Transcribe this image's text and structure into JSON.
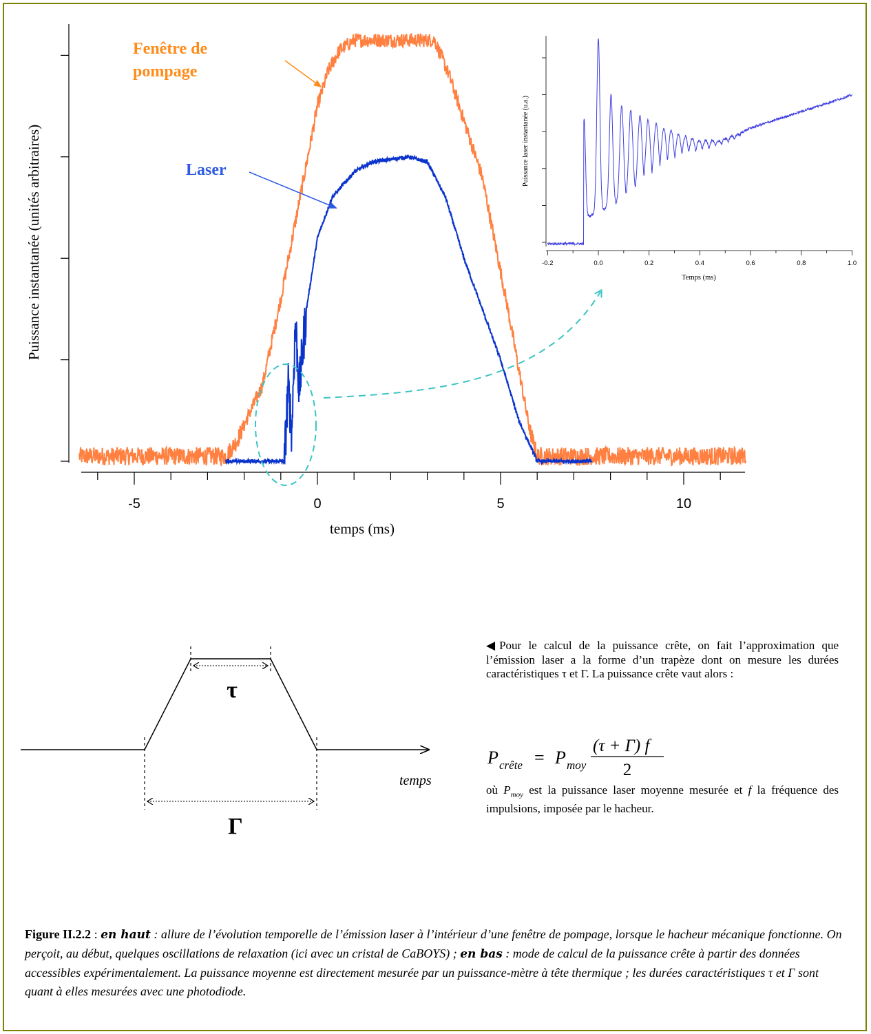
{
  "colors": {
    "border": "#808000",
    "pump": "#FF8040",
    "laser": "#0A33CC",
    "inset_laser": "#3F3FE0",
    "annotation_arrow": "#3BC4C4",
    "pump_label": "#FF8C1A",
    "laser_label": "#2E5BE0"
  },
  "main_chart": {
    "xlabel": "temps (ms)",
    "ylabel": "Puissance instantanée (unités arbitraires)",
    "x_tick_labels": [
      "-5",
      "0",
      "5",
      "10"
    ],
    "pump_label_line1": "Fenêtre de",
    "pump_label_line2": "pompage",
    "laser_label": "Laser"
  },
  "inset_chart": {
    "xlabel": "Temps (ms)",
    "ylabel": "Puissance laser instantanée (u.a.)",
    "x_tick_labels": [
      "-0.2",
      "0.0",
      "0.2",
      "0.4",
      "0.6",
      "0.8",
      "1.0"
    ]
  },
  "chart_data": [
    {
      "type": "line",
      "xlabel": "temps (ms)",
      "ylabel": "Puissance instantanée (unités arbitraires)",
      "xlim": [
        -6.5,
        11.7
      ],
      "ylim": [
        0,
        4.3
      ],
      "x_ticks": [
        -5,
        0,
        5,
        10
      ],
      "series": [
        {
          "name": "Fenêtre de pompage",
          "x": [
            -6.5,
            -2.5,
            -2.2,
            -1.5,
            -1.0,
            0.0,
            0.3,
            0.6,
            1.0,
            3.2,
            3.6,
            4.5,
            5.2,
            5.8,
            6.0,
            11.7
          ],
          "y": [
            0.05,
            0.05,
            0.2,
            0.75,
            1.6,
            3.5,
            3.85,
            4.05,
            4.15,
            4.15,
            3.8,
            2.8,
            1.5,
            0.3,
            0.05,
            0.05
          ]
        },
        {
          "name": "Laser",
          "x": [
            -2.5,
            -0.9,
            -0.8,
            -0.7,
            -0.6,
            -0.5,
            -0.3,
            0.0,
            0.4,
            1.0,
            1.5,
            2.5,
            3.0,
            3.5,
            4.0,
            4.5,
            5.0,
            5.5,
            6.0,
            7.5
          ],
          "y": [
            0.0,
            0.0,
            0.75,
            0.3,
            1.4,
            0.7,
            1.5,
            2.2,
            2.6,
            2.85,
            2.95,
            3.0,
            2.95,
            2.6,
            2.0,
            1.5,
            1.0,
            0.4,
            0.0,
            0.0
          ]
        }
      ]
    },
    {
      "type": "line",
      "xlabel": "Temps (ms)",
      "ylabel": "Puissance laser instantanée (u.a.)",
      "xlim": [
        -0.2,
        1.0
      ],
      "x_ticks": [
        -0.2,
        0.0,
        0.2,
        0.4,
        0.6,
        0.8,
        1.0
      ],
      "series": [
        {
          "name": "Laser",
          "x": [
            -0.2,
            -0.06,
            -0.05,
            0.0,
            0.05,
            0.1,
            0.2,
            0.3,
            0.4,
            0.5,
            0.6,
            0.8,
            1.0
          ],
          "y": [
            0.0,
            0.0,
            0.6,
            1.0,
            0.65,
            0.63,
            0.56,
            0.5,
            0.44,
            0.5,
            0.56,
            0.64,
            0.72
          ]
        }
      ]
    }
  ],
  "schema": {
    "tau": "τ",
    "gamma": "Γ",
    "axis_label": "temps"
  },
  "note": {
    "text1": "Pour le calcul de la puissance crête, on fait l’approximation que l’émission laser a la forme d’un trapèze dont on mesure les durées caractéristiques τ et Γ. La puissance crête vaut alors :",
    "formula_lhs": "P",
    "formula_lhs_sub": "crête",
    "formula_rhs": "P",
    "formula_rhs_sub": "moy",
    "formula_numerator": "(τ + Γ) f",
    "formula_denominator": "2",
    "text2_a": "où ",
    "text2_pmoy": "P",
    "text2_pmoy_sub": "moy",
    "text2_b": " est la puissance laser moyenne mesurée et ",
    "text2_f": "f",
    "text2_c": " la fréquence des impulsions, imposée par le hacheur."
  },
  "caption": {
    "label": "Figure II.2.2",
    "sep1": " : ",
    "part1_label": "en haut",
    "part1_text": " : allure de l’évolution temporelle de l’émission laser à l’intérieur d’une fenêtre de pompage, lorsque le hacheur mécanique fonctionne. On perçoit, au début, quelques oscillations de relaxation (ici avec un cristal de CaBOYS) ; ",
    "part2_label": "en bas",
    "part2_text": " : mode de calcul de la puissance crête à partir des données accessibles expérimentalement. La puissance moyenne est directement mesurée par un puissance-mètre à tête thermique ; les durées caractéristiques τ et Γ sont quant à elles mesurées avec une photodiode."
  }
}
